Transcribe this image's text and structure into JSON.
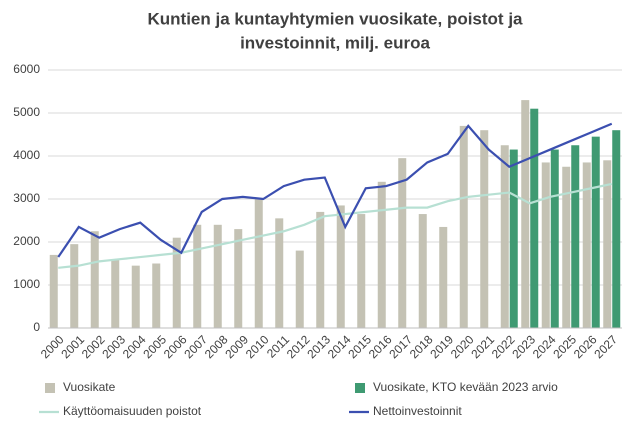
{
  "chart_data": {
    "type": "bar_line",
    "title": [
      "Kuntien ja kuntayhtymien vuosikate, poistot ja",
      "investoinnit, milj. euroa"
    ],
    "categories": [
      "2000",
      "2001",
      "2002",
      "2003",
      "2004",
      "2005",
      "2006",
      "2007",
      "2008",
      "2009",
      "2010",
      "2011",
      "2012",
      "2013",
      "2014",
      "2015",
      "2016",
      "2017",
      "2018",
      "2019",
      "2020",
      "2021",
      "2022",
      "2023",
      "2024",
      "2025",
      "2026",
      "2027"
    ],
    "ylim": [
      0,
      6000
    ],
    "yticks": [
      0,
      1000,
      2000,
      3000,
      4000,
      5000,
      6000
    ],
    "grid": true,
    "series": [
      {
        "name": "Vuosikate",
        "kind": "bar",
        "color": "#c4c2b4",
        "values": [
          1700,
          1950,
          2250,
          1600,
          1450,
          1500,
          2100,
          2400,
          2400,
          2300,
          3000,
          2550,
          1800,
          2700,
          2850,
          2650,
          3400,
          3950,
          2650,
          2350,
          4700,
          4600,
          4250,
          5300,
          3850,
          3750,
          3850,
          3900
        ]
      },
      {
        "name": "Vuosikate, KTO kevään 2023 arvio",
        "kind": "bar",
        "color": "#3f9a72",
        "values": [
          null,
          null,
          null,
          null,
          null,
          null,
          null,
          null,
          null,
          null,
          null,
          null,
          null,
          null,
          null,
          null,
          null,
          null,
          null,
          null,
          null,
          null,
          4150,
          5100,
          4150,
          4250,
          4450,
          4600
        ]
      },
      {
        "name": "Käyttöomaisuuden poistot",
        "kind": "line",
        "color": "#b7e0d3",
        "values": [
          1400,
          1450,
          1550,
          1600,
          1650,
          1700,
          1750,
          1850,
          1950,
          2050,
          2150,
          2250,
          2400,
          2600,
          2650,
          2700,
          2750,
          2800,
          2800,
          2950,
          3050,
          3100,
          3150,
          2900,
          3050,
          3150,
          3250,
          3350
        ]
      },
      {
        "name": "Nettoinvestoinnit",
        "kind": "line",
        "color": "#3b4fb0",
        "values": [
          1650,
          2350,
          2100,
          2300,
          2450,
          2050,
          1750,
          2700,
          3000,
          3050,
          3000,
          3300,
          3450,
          3500,
          2350,
          3250,
          3300,
          3450,
          3850,
          4050,
          4700,
          4150,
          3750,
          3950,
          4150,
          4350,
          4550,
          4750
        ]
      }
    ]
  }
}
